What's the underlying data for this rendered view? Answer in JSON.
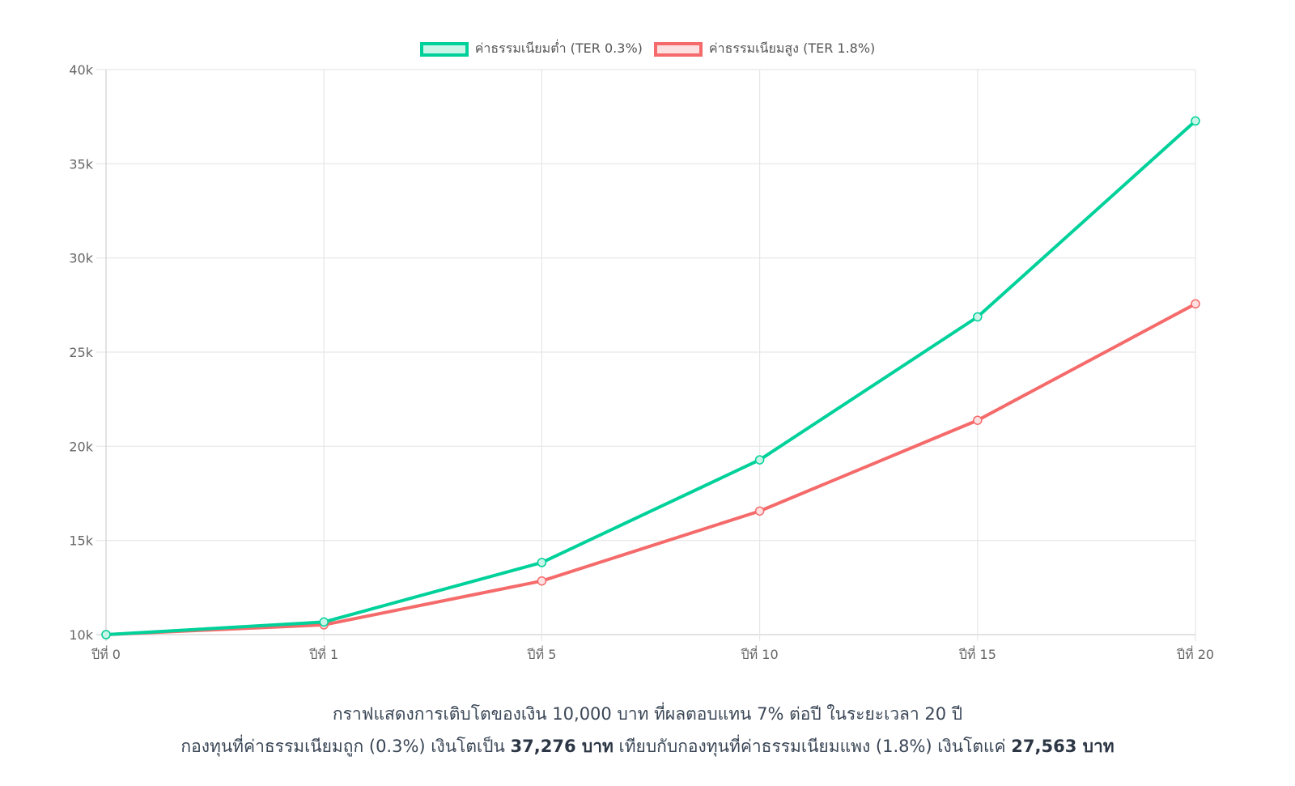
{
  "chart_data": {
    "type": "line",
    "title": "",
    "xlabel": "",
    "ylabel": "",
    "categories": [
      "ปีที่ 0",
      "ปีที่ 1",
      "ปีที่ 5",
      "ปีที่ 10",
      "ปีที่ 15",
      "ปีที่ 20"
    ],
    "x_positions": [
      0,
      1,
      5,
      10,
      15,
      20
    ],
    "ylim": [
      10000,
      40000
    ],
    "yticks": [
      10000,
      15000,
      20000,
      25000,
      30000,
      35000,
      40000
    ],
    "ytick_labels": [
      "10k",
      "15k",
      "20k",
      "25k",
      "30k",
      "35k",
      "40k"
    ],
    "grid": true,
    "legend_position": "top",
    "series": [
      {
        "name": "ค่าธรรมเนียมต่ำ (TER 0.3%)",
        "color": "#00d19a",
        "fill": "#c9f4e7",
        "values": [
          10000,
          10670,
          13830,
          19280,
          26870,
          37276
        ]
      },
      {
        "name": "ค่าธรรมเนียมสูง (TER 1.8%)",
        "color": "#f56a6a",
        "fill": "#fde0e0",
        "values": [
          10000,
          10520,
          12850,
          16560,
          21380,
          27563
        ]
      }
    ]
  },
  "caption": {
    "line1": "กราฟแสดงการเติบโตของเงิน 10,000 บาท ที่ผลตอบแทน 7% ต่อปี ในระยะเวลา 20 ปี",
    "line2_part1": "กองทุนที่ค่าธรรมเนียมถูก (0.3%) เงินโตเป็น ",
    "line2_bold1": "37,276 บาท",
    "line2_part2": " เทียบกับกองทุนที่ค่าธรรมเนียมแพง (1.8%) เงินโตแค่ ",
    "line2_bold2": "27,563 บาท"
  }
}
